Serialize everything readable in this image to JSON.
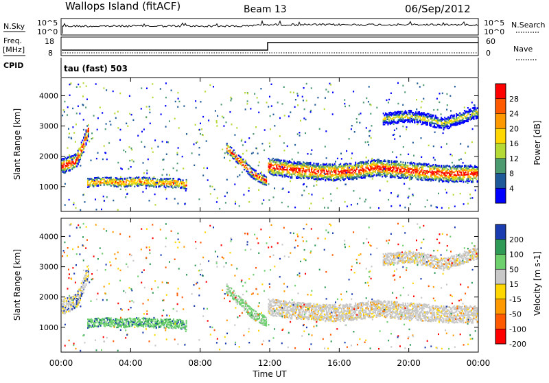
{
  "header": {
    "title": "Wallops Island (fitACF)",
    "beam": "Beam 13",
    "date": "06/Sep/2012"
  },
  "panels": {
    "nsky": {
      "label": "N.Sky",
      "right_label": "N.Search",
      "left_ticks": [
        "10^5",
        "10^0"
      ],
      "right_ticks": [
        "10^5",
        "10^0"
      ]
    },
    "freq": {
      "label": "Freq.",
      "unit": "[MHz]",
      "cpid_label": "CPID",
      "right_label": "Nave",
      "left_ticks": [
        "18",
        "8"
      ],
      "right_ticks": [
        "60",
        "0"
      ],
      "cpid_text": "tau (fast) 503"
    }
  },
  "colorbars": {
    "power": {
      "label": "Power [dB]",
      "ticks": [
        "28",
        "24",
        "20",
        "16",
        "12",
        "8",
        "4"
      ],
      "colors": [
        "#ff0000",
        "#ff5a00",
        "#ff9900",
        "#ffd700",
        "#b5d935",
        "#4c9a70",
        "#1e5a9a",
        "#0000ff"
      ]
    },
    "velocity": {
      "label": "Velocity [m s-1]",
      "ticks": [
        "200",
        "100",
        "50",
        "15",
        "-15",
        "-50",
        "-100",
        "-200"
      ],
      "colors": [
        "#1a3cb0",
        "#2e9a55",
        "#6dd06d",
        "#c8c8c8",
        "#ffd700",
        "#ff9900",
        "#ff5a00",
        "#ff0000"
      ]
    }
  },
  "chart_data": [
    {
      "type": "heatmap",
      "name": "Power",
      "ylabel": "Slant Range [km]",
      "y_ticks": [
        1000,
        2000,
        3000,
        4000
      ],
      "ylim": [
        180,
        4600
      ],
      "xlim": [
        0,
        24
      ],
      "bands": [
        {
          "x": [
            0,
            0.8,
            1.3,
            1.6
          ],
          "y": [
            1700,
            1850,
            2450,
            3050
          ],
          "w": 250
        },
        {
          "x": [
            1.5,
            2.5,
            3.5,
            4.5,
            5.5,
            6.5,
            7.2
          ],
          "y": [
            1150,
            1200,
            1150,
            1200,
            1150,
            1150,
            1100
          ],
          "w": 150
        },
        {
          "x": [
            9.5,
            10.3,
            11.0,
            11.8
          ],
          "y": [
            2300,
            1850,
            1450,
            1200
          ],
          "w": 160
        },
        {
          "x": [
            11.9,
            13,
            14,
            15,
            16,
            17,
            18,
            19,
            20,
            21,
            22,
            23,
            24
          ],
          "y": [
            1700,
            1600,
            1550,
            1500,
            1500,
            1550,
            1650,
            1600,
            1550,
            1500,
            1450,
            1450,
            1450
          ],
          "w": 280
        },
        {
          "x": [
            18.5,
            20,
            21,
            22,
            23,
            24
          ],
          "y": [
            3250,
            3350,
            3250,
            3100,
            3300,
            3500
          ],
          "w": 200
        }
      ]
    },
    {
      "type": "heatmap",
      "name": "Velocity",
      "ylabel": "Slant Range [km]",
      "y_ticks": [
        1000,
        2000,
        3000,
        4000
      ],
      "ylim": [
        180,
        4600
      ],
      "xlim": [
        0,
        24
      ],
      "x_ticks": [
        "00:00",
        "04:00",
        "08:00",
        "12:00",
        "16:00",
        "20:00",
        "00:00"
      ],
      "xlabel": "Time UT"
    }
  ]
}
